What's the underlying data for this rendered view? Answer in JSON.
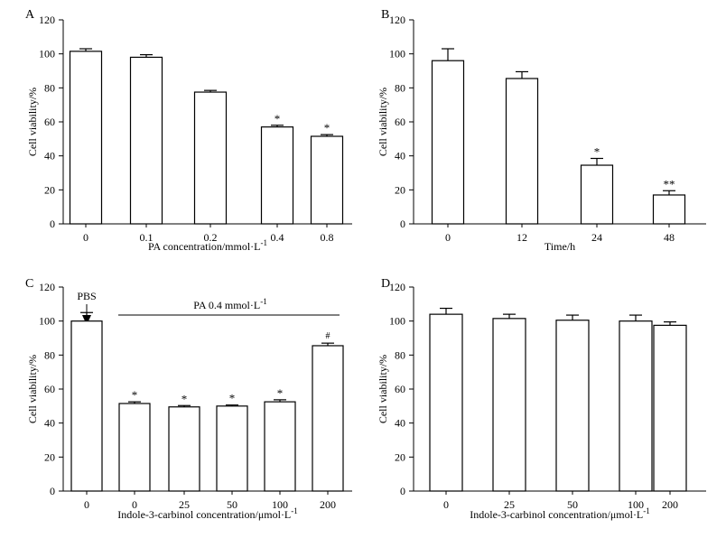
{
  "chart_data": [
    {
      "panel": "A",
      "type": "bar",
      "ylabel": "Cell viability/%",
      "xlabel": "PA concentration/mmol·L",
      "xlabel_sup": "-1",
      "categories": [
        "0",
        "0.1",
        "0.2",
        "0.4",
        "0.8"
      ],
      "values": [
        101.5,
        98,
        77.5,
        57,
        51.5
      ],
      "errors": [
        1.5,
        1.5,
        1,
        1,
        1
      ],
      "marks": [
        "",
        "",
        "",
        "*",
        "*"
      ],
      "ylim": [
        0,
        120
      ],
      "yticks": [
        "0",
        "20",
        "40",
        "60",
        "80",
        "100",
        "120"
      ]
    },
    {
      "panel": "B",
      "type": "bar",
      "ylabel": "Cell viability/%",
      "xlabel": "Time/h",
      "xlabel_sup": "",
      "categories": [
        "0",
        "12",
        "24",
        "48"
      ],
      "values": [
        96,
        85.5,
        34.5,
        17
      ],
      "errors": [
        7,
        4,
        4,
        2.5
      ],
      "marks": [
        "",
        "",
        "*",
        "**"
      ],
      "ylim": [
        0,
        120
      ],
      "yticks": [
        "0",
        "20",
        "40",
        "60",
        "80",
        "100",
        "120"
      ]
    },
    {
      "panel": "C",
      "type": "bar",
      "ylabel": "Cell viability/%",
      "xlabel": "Indole-3-carbinol concentration/μmol·L",
      "xlabel_sup": "-1",
      "categories": [
        "0",
        "0",
        "25",
        "50",
        "100",
        "200"
      ],
      "values": [
        100,
        51.5,
        49.5,
        50,
        52.5,
        85.5
      ],
      "errors": [
        5,
        1,
        0.8,
        0.6,
        1.2,
        1.5
      ],
      "marks": [
        "",
        "*",
        "*",
        "*",
        "*",
        "#"
      ],
      "ylim": [
        0,
        120
      ],
      "yticks": [
        "0",
        "20",
        "40",
        "60",
        "80",
        "100",
        "120"
      ],
      "annotation_pbs": "PBS",
      "annotation_pa": "PA 0.4 mmol·L",
      "annotation_pa_sup": "-1"
    },
    {
      "panel": "D",
      "type": "bar",
      "ylabel": "Cell viability/%",
      "xlabel": "Indole-3-carbinol concentration/μmol·L",
      "xlabel_sup": "-1",
      "categories": [
        "0",
        "25",
        "50",
        "100",
        "200"
      ],
      "values": [
        104,
        101.5,
        100.5,
        100,
        97.5
      ],
      "errors": [
        3.5,
        2.5,
        3,
        3.5,
        2
      ],
      "marks": [
        "",
        "",
        "",
        "",
        ""
      ],
      "ylim": [
        0,
        120
      ],
      "yticks": [
        "0",
        "20",
        "40",
        "60",
        "80",
        "100",
        "120"
      ]
    }
  ]
}
